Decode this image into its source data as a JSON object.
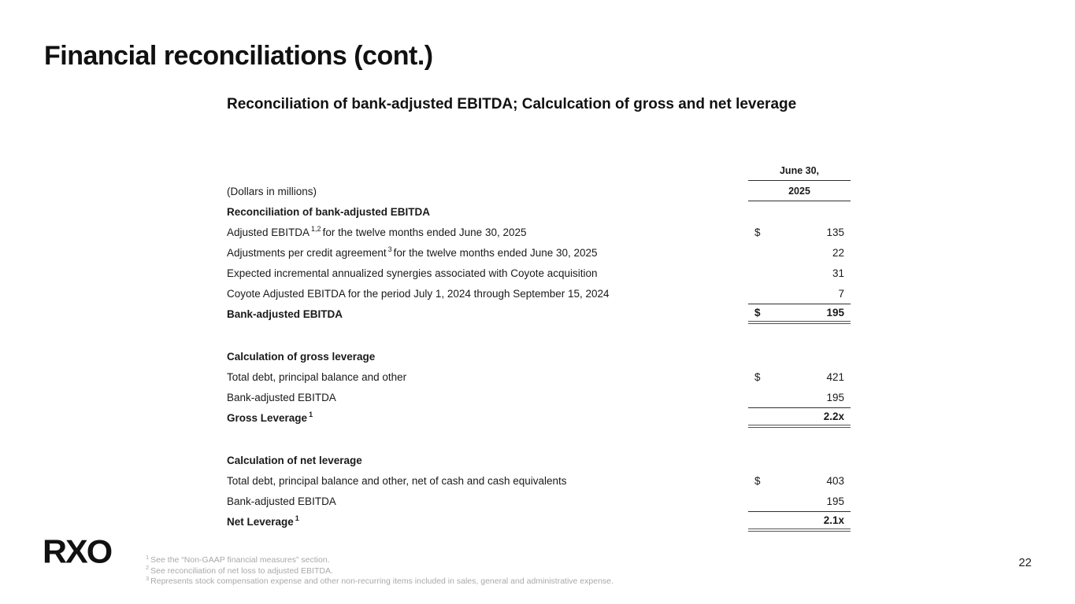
{
  "title": "Financial reconciliations (cont.)",
  "subtitle": "Reconciliation of bank-adjusted EBITDA; Calculcation of gross and net leverage",
  "logo": "RXO",
  "page_number": "22",
  "table": {
    "period": "June 30,",
    "year": "2025",
    "units": "(Dollars in millions)",
    "ebitda_section": {
      "heading": "Reconciliation of bank-adjusted EBITDA",
      "row1": {
        "pre": "Adjusted EBITDA",
        "sup": "1,2",
        "post": "for the twelve months ended June 30, 2025",
        "dollar": "$",
        "value": "135"
      },
      "row2": {
        "pre": "Adjustments per credit agreement",
        "sup": "3",
        "post": "for the twelve months ended June 30, 2025",
        "value": "22"
      },
      "row3": {
        "label": "Expected incremental annualized synergies associated with Coyote acquisition",
        "value": "31"
      },
      "row4": {
        "label": "Coyote Adjusted EBITDA for the period July 1, 2024 through September 15, 2024",
        "value": "7"
      },
      "total": {
        "label": "Bank-adjusted EBITDA",
        "dollar": "$",
        "value": "195"
      }
    },
    "gross_section": {
      "heading": "Calculation of gross leverage",
      "row1": {
        "label": "Total debt, principal balance and other",
        "dollar": "$",
        "value": "421"
      },
      "row2": {
        "label": "Bank-adjusted EBITDA",
        "value": "195"
      },
      "total": {
        "pre": "Gross Leverage",
        "sup": "1",
        "value": "2.2x"
      }
    },
    "net_section": {
      "heading": "Calculation of net leverage",
      "row1": {
        "label": "Total debt, principal balance and other, net of cash and cash equivalents",
        "dollar": "$",
        "value": "403"
      },
      "row2": {
        "label": "Bank-adjusted EBITDA",
        "value": "195"
      },
      "total": {
        "pre": "Net Leverage",
        "sup": "1",
        "value": "2.1x"
      }
    }
  },
  "footnotes": [
    {
      "sup": "1",
      "text": "See the “Non-GAAP financial measures” section."
    },
    {
      "sup": "2",
      "text": "See reconciliation of net loss to adjusted EBITDA."
    },
    {
      "sup": "3",
      "text": "Represents stock compensation expense and other non-recurring items included in sales, general and administrative expense."
    }
  ]
}
